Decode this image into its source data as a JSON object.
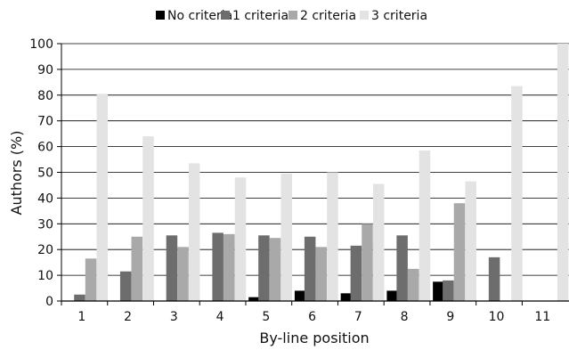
{
  "chart_data": {
    "type": "bar",
    "xlabel": "By-line position",
    "ylabel": "Authors (%)",
    "ylim": [
      0,
      100
    ],
    "yticks": [
      0,
      10,
      20,
      30,
      40,
      50,
      60,
      70,
      80,
      90,
      100
    ],
    "grid": "horizontal",
    "legend_position": "top",
    "categories": [
      "1",
      "2",
      "3",
      "4",
      "5",
      "6",
      "7",
      "8",
      "9",
      "10",
      "11"
    ],
    "series": [
      {
        "name": "No criteria",
        "color": "#000000",
        "values": [
          0,
          0,
          0,
          0,
          1.5,
          4,
          3,
          4,
          7.5,
          0,
          0
        ]
      },
      {
        "name": "1 criteria",
        "color": "#6d6d6d",
        "values": [
          2.5,
          11.5,
          25.5,
          26.5,
          25.5,
          25,
          21.5,
          25.5,
          8,
          17,
          0
        ]
      },
      {
        "name": "2 criteria",
        "color": "#a9a9a9",
        "values": [
          16.5,
          25,
          21,
          26,
          24.5,
          21,
          30,
          12.5,
          38,
          0,
          0
        ]
      },
      {
        "name": "3 criteria",
        "color": "#e3e3e3",
        "values": [
          80.5,
          64,
          53.5,
          48,
          49.5,
          50,
          45.5,
          58.5,
          46.5,
          83.5,
          100
        ]
      }
    ]
  }
}
